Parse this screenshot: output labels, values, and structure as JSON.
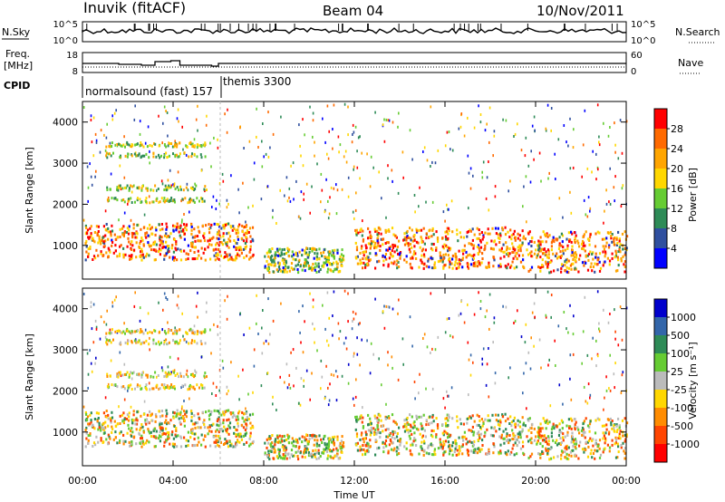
{
  "header": {
    "station": "Inuvik (fitACF)",
    "beam": "Beam 04",
    "date": "10/Nov/2011"
  },
  "top_panel": {
    "nsky_label": "N.Sky",
    "nsearch_label": "N.Search",
    "left_ticks": [
      "10^5",
      "10^0"
    ],
    "right_ticks": [
      "10^5",
      "10^0"
    ],
    "freq_label": "Freq.",
    "freq_unit": "[MHz]",
    "freq_ticks": [
      "18",
      "8"
    ],
    "nave_label": "Nave",
    "nave_ticks": [
      "60",
      "0"
    ],
    "cpid_label": "CPID",
    "cpid_1": "normalsound (fast) 157",
    "cpid_2": "themis 3300"
  },
  "x_axis": {
    "label": "Time UT",
    "ticks": [
      "00:00",
      "04:00",
      "08:00",
      "12:00",
      "16:00",
      "20:00",
      "00:00"
    ]
  },
  "power_panel": {
    "ylabel": "Slant Range [km]",
    "yticks": [
      "1000",
      "2000",
      "3000",
      "4000"
    ],
    "colorbar_label": "Power [dB]",
    "colorbar_ticks": [
      "4",
      "8",
      "12",
      "16",
      "20",
      "24",
      "28"
    ],
    "colors": [
      "#0000ff",
      "#2f4f9f",
      "#2e8b57",
      "#66cc33",
      "#ffd700",
      "#ffa500",
      "#ff6a00",
      "#ff0000"
    ]
  },
  "velocity_panel": {
    "ylabel": "Slant Range [km]",
    "yticks": [
      "1000",
      "2000",
      "3000",
      "4000"
    ],
    "colorbar_label": "Velocity [m s⁻¹]",
    "colorbar_ticks": [
      "1000",
      "500",
      "100",
      "25",
      "-25",
      "-100",
      "-500",
      "-1000"
    ],
    "colors": [
      "#0000cc",
      "#3366aa",
      "#2e8b57",
      "#66cc33",
      "#bbbbbb",
      "#ffd700",
      "#ff8c00",
      "#ff4500",
      "#ff0000"
    ]
  },
  "chart_data": {
    "type": "heatmap",
    "x_range_hours": [
      0,
      24
    ],
    "y_range_km": [
      180,
      4500
    ],
    "power_bands": [
      {
        "t0": 0.1,
        "t1": 7.5,
        "r0": 600,
        "r1": 1500,
        "level": "high"
      },
      {
        "t0": 8.0,
        "t1": 11.5,
        "r0": 300,
        "r1": 900,
        "level": "mid"
      },
      {
        "t0": 12.0,
        "t1": 19.5,
        "r0": 400,
        "r1": 1400,
        "level": "high"
      },
      {
        "t0": 19.5,
        "t1": 24.0,
        "r0": 300,
        "r1": 1300,
        "level": "high"
      }
    ]
  }
}
